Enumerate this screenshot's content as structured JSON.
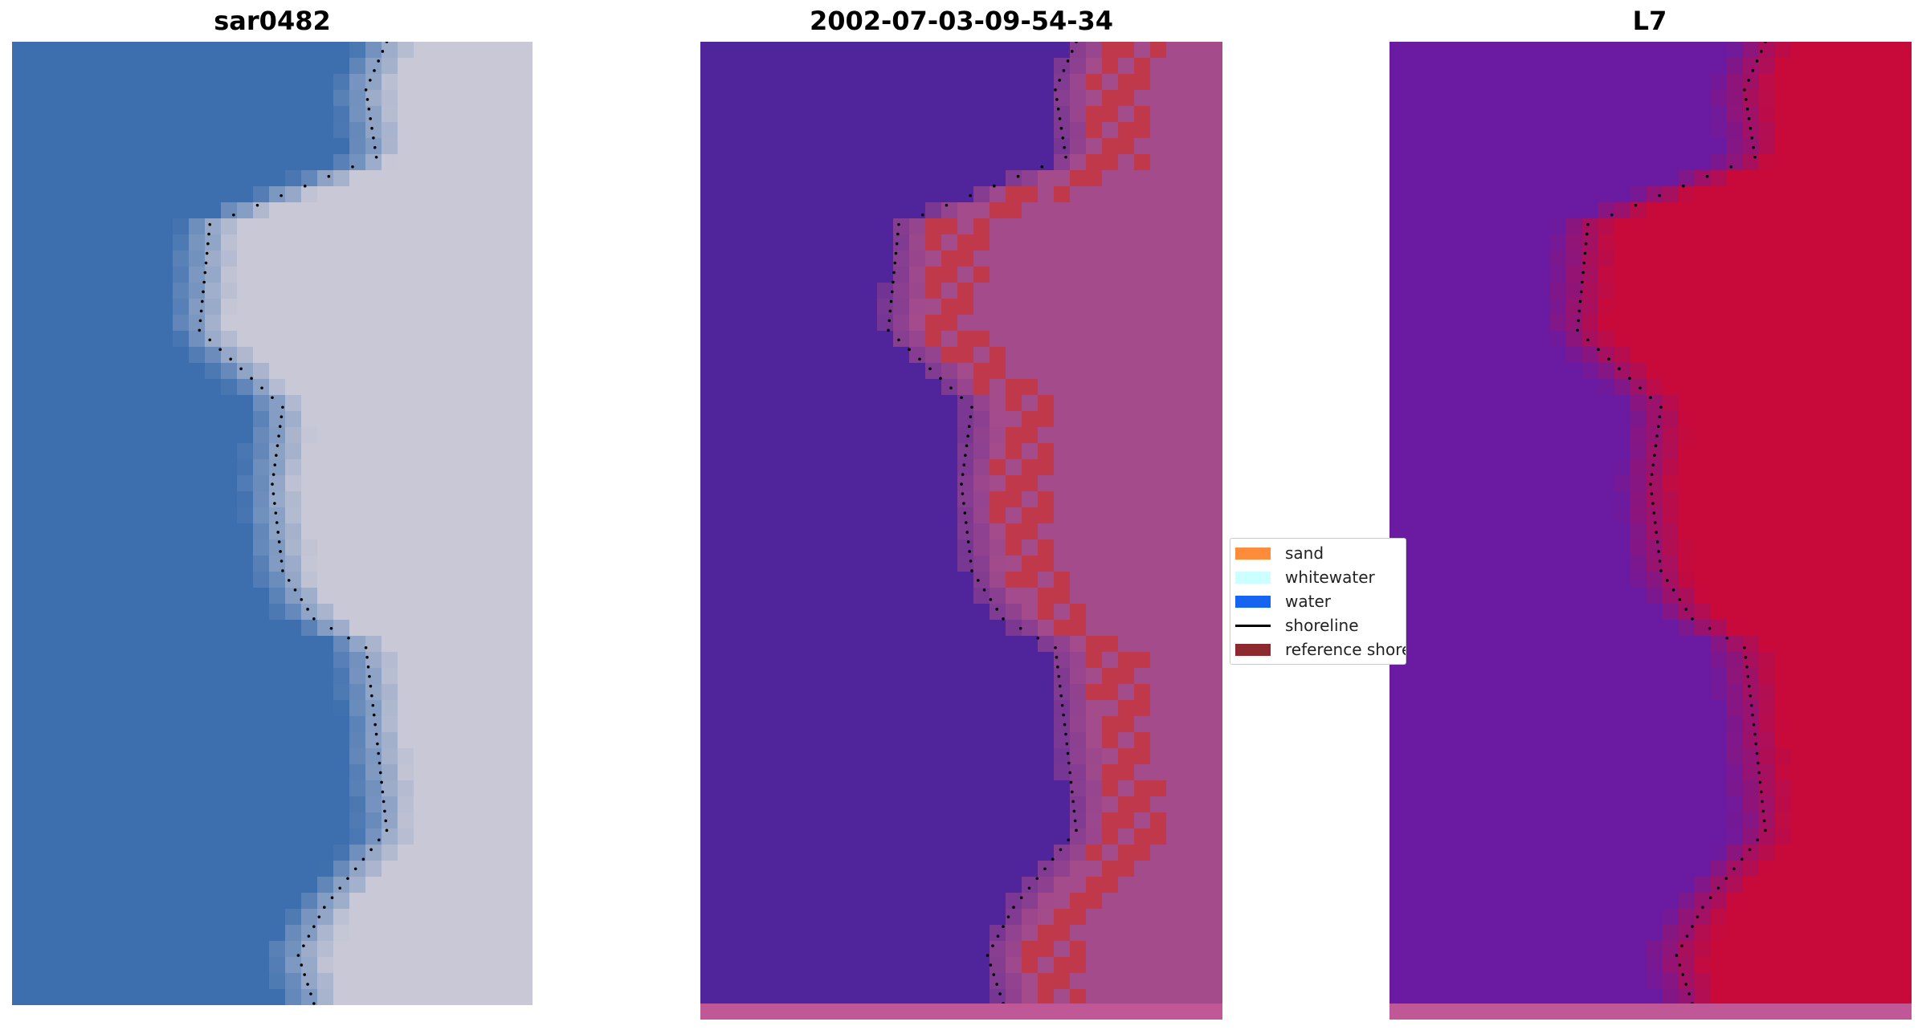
{
  "panels": [
    {
      "title": "sar0482",
      "kind": "rgb"
    },
    {
      "title": "2002-07-03-09-54-34",
      "kind": "classified"
    },
    {
      "title": "L7",
      "kind": "index"
    }
  ],
  "legend": {
    "items": [
      {
        "label": "sand",
        "color": "#ff8c3a",
        "type": "patch"
      },
      {
        "label": "whitewater",
        "color": "#ccffff",
        "type": "patch"
      },
      {
        "label": "water",
        "color": "#1565f2",
        "type": "patch"
      },
      {
        "label": "shoreline",
        "color": "#000000",
        "type": "line"
      },
      {
        "label": "reference shoreline buffer",
        "color": "#8e2a2e",
        "type": "patch"
      }
    ]
  },
  "colors": {
    "rgb_water": "#3d6fae",
    "rgb_land": "#c8c8d6",
    "class_water": "#50249a",
    "class_land": "#a44b8c",
    "class_buffer": "#c0394a",
    "index_low": "#6a1ba2",
    "index_high": "#c80a3a",
    "shoreline_dot": "#000000",
    "bottom_strip": "#c05898"
  }
}
